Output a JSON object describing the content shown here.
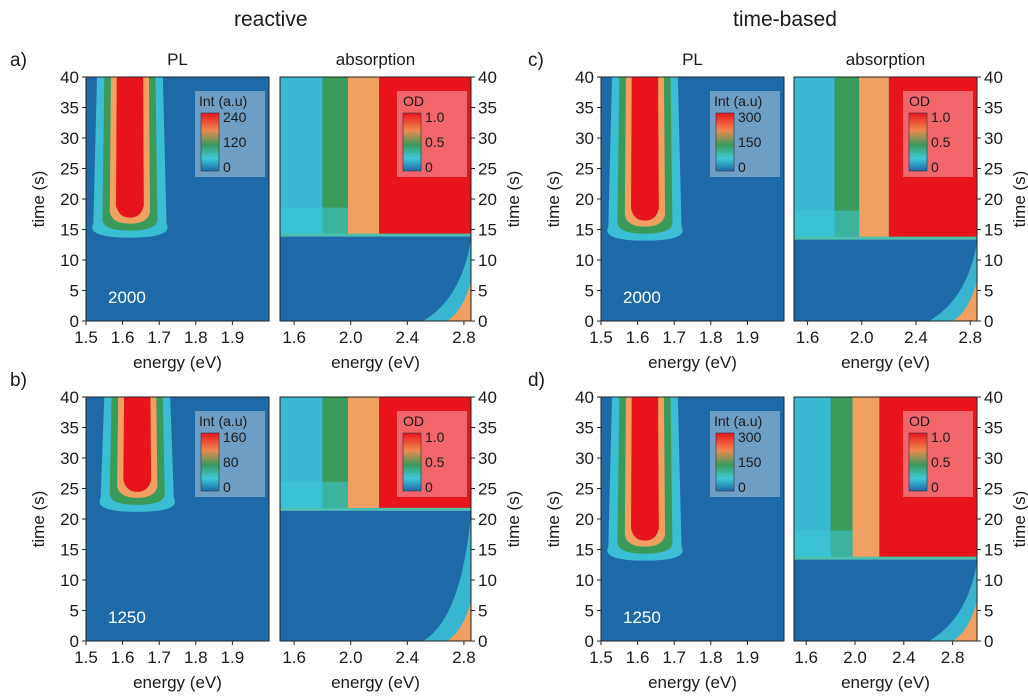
{
  "titles": {
    "left": "reactive",
    "right": "time-based"
  },
  "chart_data": [
    {
      "panel": "a)",
      "group": "reactive",
      "type": "heatmap",
      "title": "PL",
      "xlabel": "energy (eV)",
      "ylabel": "time (s)",
      "xlim": [
        1.5,
        2.0
      ],
      "ylim": [
        0,
        40
      ],
      "xticks": [
        "1.5",
        "1.6",
        "1.7",
        "1.8",
        "1.9"
      ],
      "yticks": [
        "0",
        "5",
        "10",
        "15",
        "20",
        "25",
        "30",
        "35",
        "40"
      ],
      "colorbar": {
        "title": "Int (a.u)",
        "ticks": [
          "240",
          "120",
          "0"
        ],
        "range": [
          0,
          240
        ]
      },
      "sample_label": "2000",
      "onset_time_s": 14,
      "peak_energy_eV": 1.62
    },
    {
      "panel": "a)",
      "group": "reactive",
      "type": "heatmap",
      "title": "absorption",
      "xlabel": "energy (eV)",
      "ylabel": "time (s)",
      "xlim": [
        1.5,
        2.85
      ],
      "ylim": [
        0,
        40
      ],
      "xticks": [
        "1.6",
        "2.0",
        "2.4",
        "2.8"
      ],
      "yticks": [
        "0",
        "5",
        "10",
        "15",
        "20",
        "25",
        "30",
        "35",
        "40"
      ],
      "colorbar": {
        "title": "OD",
        "ticks": [
          "1.0",
          "0.5",
          "0"
        ],
        "range": [
          0,
          1.0
        ]
      },
      "onset_time_s": 14
    },
    {
      "panel": "b)",
      "group": "reactive",
      "type": "heatmap",
      "title": "",
      "xlabel": "energy (eV)",
      "ylabel": "time (s)",
      "xlim": [
        1.5,
        2.0
      ],
      "ylim": [
        0,
        40
      ],
      "xticks": [
        "1.5",
        "1.6",
        "1.7",
        "1.8",
        "1.9"
      ],
      "yticks": [
        "0",
        "5",
        "10",
        "15",
        "20",
        "25",
        "30",
        "35",
        "40"
      ],
      "colorbar": {
        "title": "Int (a.u)",
        "ticks": [
          "160",
          "80",
          "0"
        ],
        "range": [
          0,
          160
        ]
      },
      "sample_label": "1250",
      "onset_time_s": 21.5,
      "peak_energy_eV": 1.64
    },
    {
      "panel": "b)",
      "group": "reactive",
      "type": "heatmap",
      "title": "",
      "xlabel": "energy (eV)",
      "ylabel": "time (s)",
      "xlim": [
        1.5,
        2.85
      ],
      "ylim": [
        0,
        40
      ],
      "xticks": [
        "1.6",
        "2.0",
        "2.4",
        "2.8"
      ],
      "yticks": [
        "0",
        "5",
        "10",
        "15",
        "20",
        "25",
        "30",
        "35",
        "40"
      ],
      "colorbar": {
        "title": "OD",
        "ticks": [
          "1.0",
          "0.5",
          "0"
        ],
        "range": [
          0,
          1.0
        ]
      },
      "onset_time_s": 21.5
    },
    {
      "panel": "c)",
      "group": "time-based",
      "type": "heatmap",
      "title": "PL",
      "xlabel": "energy (eV)",
      "ylabel": "time (s)",
      "xlim": [
        1.5,
        2.0
      ],
      "ylim": [
        0,
        40
      ],
      "xticks": [
        "1.5",
        "1.6",
        "1.7",
        "1.8",
        "1.9"
      ],
      "yticks": [
        "0",
        "5",
        "10",
        "15",
        "20",
        "25",
        "30",
        "35",
        "40"
      ],
      "colorbar": {
        "title": "Int (a.u)",
        "ticks": [
          "300",
          "150",
          "0"
        ],
        "range": [
          0,
          300
        ]
      },
      "sample_label": "2000",
      "onset_time_s": 13.5,
      "peak_energy_eV": 1.62
    },
    {
      "panel": "c)",
      "group": "time-based",
      "type": "heatmap",
      "title": "absorption",
      "xlabel": "energy (eV)",
      "ylabel": "time (s)",
      "xlim": [
        1.5,
        2.85
      ],
      "ylim": [
        0,
        40
      ],
      "xticks": [
        "1.6",
        "2.0",
        "2.4",
        "2.8"
      ],
      "yticks": [
        "0",
        "5",
        "10",
        "15",
        "20",
        "25",
        "30",
        "35",
        "40"
      ],
      "colorbar": {
        "title": "OD",
        "ticks": [
          "1.0",
          "0.5",
          "0"
        ],
        "range": [
          0,
          1.0
        ]
      },
      "onset_time_s": 13.5
    },
    {
      "panel": "d)",
      "group": "time-based",
      "type": "heatmap",
      "title": "",
      "xlabel": "energy (eV)",
      "ylabel": "time (s)",
      "xlim": [
        1.5,
        2.0
      ],
      "ylim": [
        0,
        40
      ],
      "xticks": [
        "1.5",
        "1.6",
        "1.7",
        "1.8",
        "1.9"
      ],
      "yticks": [
        "0",
        "5",
        "10",
        "15",
        "20",
        "25",
        "30",
        "35",
        "40"
      ],
      "colorbar": {
        "title": "Int (a.u)",
        "ticks": [
          "300",
          "150",
          "0"
        ],
        "range": [
          0,
          300
        ]
      },
      "sample_label": "1250",
      "onset_time_s": 13.5,
      "peak_energy_eV": 1.62
    },
    {
      "panel": "d)",
      "group": "time-based",
      "type": "heatmap",
      "title": "",
      "xlabel": "energy (eV)",
      "ylabel": "time (s)",
      "xlim": [
        1.5,
        3.0
      ],
      "ylim": [
        0,
        40
      ],
      "xticks": [
        "1.6",
        "2.0",
        "2.4",
        "2.8"
      ],
      "yticks": [
        "0",
        "5",
        "10",
        "15",
        "20",
        "25",
        "30",
        "35",
        "40"
      ],
      "colorbar": {
        "title": "OD",
        "ticks": [
          "1.0",
          "0.5",
          "0"
        ],
        "range": [
          0,
          1.0
        ]
      },
      "onset_time_s": 13.5
    }
  ],
  "colors": {
    "background_low": "#1e6aa8",
    "cyan": "#3ec8d8",
    "green": "#3a9a5a",
    "orange": "#f0a060",
    "red": "#e8141c"
  }
}
